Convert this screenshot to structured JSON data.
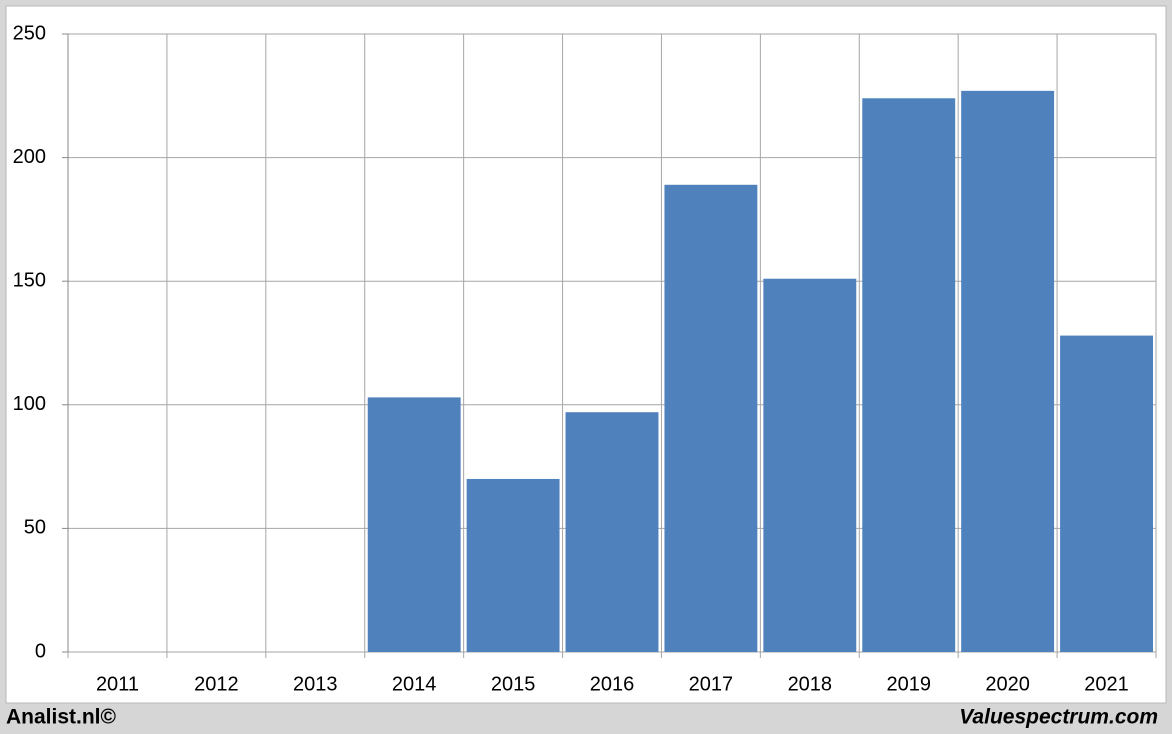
{
  "chart_data": {
    "type": "bar",
    "categories": [
      "2011",
      "2012",
      "2013",
      "2014",
      "2015",
      "2016",
      "2017",
      "2018",
      "2019",
      "2020",
      "2021"
    ],
    "values": [
      null,
      null,
      null,
      103,
      70,
      97,
      189,
      151,
      224,
      227,
      128
    ],
    "color": "#4f81bd",
    "ylim": [
      0,
      250
    ],
    "yticks": [
      0,
      50,
      100,
      150,
      200,
      250
    ],
    "grid": true,
    "annotations": [
      "Analist.nl©",
      "Valuespectrum.com"
    ]
  }
}
